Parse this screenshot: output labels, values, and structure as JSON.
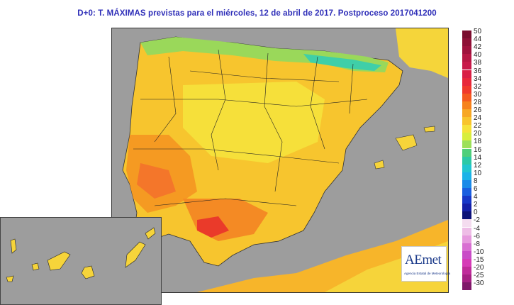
{
  "title": "D+0: T. MÁXIMAS previstas para el miércoles, 12 de abril de 2017. Postproceso 2017041200",
  "logo": {
    "name": "AEmet",
    "subtitle": "Agencia Estatal de Meteorología"
  },
  "legend": {
    "labels": [
      "50",
      "44",
      "42",
      "40",
      "38",
      "36",
      "34",
      "32",
      "30",
      "28",
      "26",
      "24",
      "22",
      "20",
      "18",
      "16",
      "14",
      "12",
      "10",
      "8",
      "6",
      "4",
      "2",
      "0",
      "-2",
      "-4",
      "-6",
      "-8",
      "-10",
      "-15",
      "-20",
      "-25",
      "-30"
    ],
    "colors": [
      "#7a0c2e",
      "#8e1036",
      "#a0123d",
      "#b71744",
      "#c8194a",
      "#d91f45",
      "#e8283a",
      "#f0392b",
      "#f45a1f",
      "#f6821c",
      "#f7a724",
      "#f8c42c",
      "#f6e23a",
      "#d8ee3e",
      "#9ce05a",
      "#4fcf7a",
      "#2cc9a6",
      "#22c6cf",
      "#1cb3e8",
      "#1a8ae8",
      "#1a5fe0",
      "#1838c8",
      "#1520a8",
      "#0d1278",
      "#f4dcef",
      "#eebde6",
      "#e69ade",
      "#d86fd2",
      "#c94cc7",
      "#d63bb7",
      "#c02b9a",
      "#a62083",
      "#7f1869"
    ]
  }
}
